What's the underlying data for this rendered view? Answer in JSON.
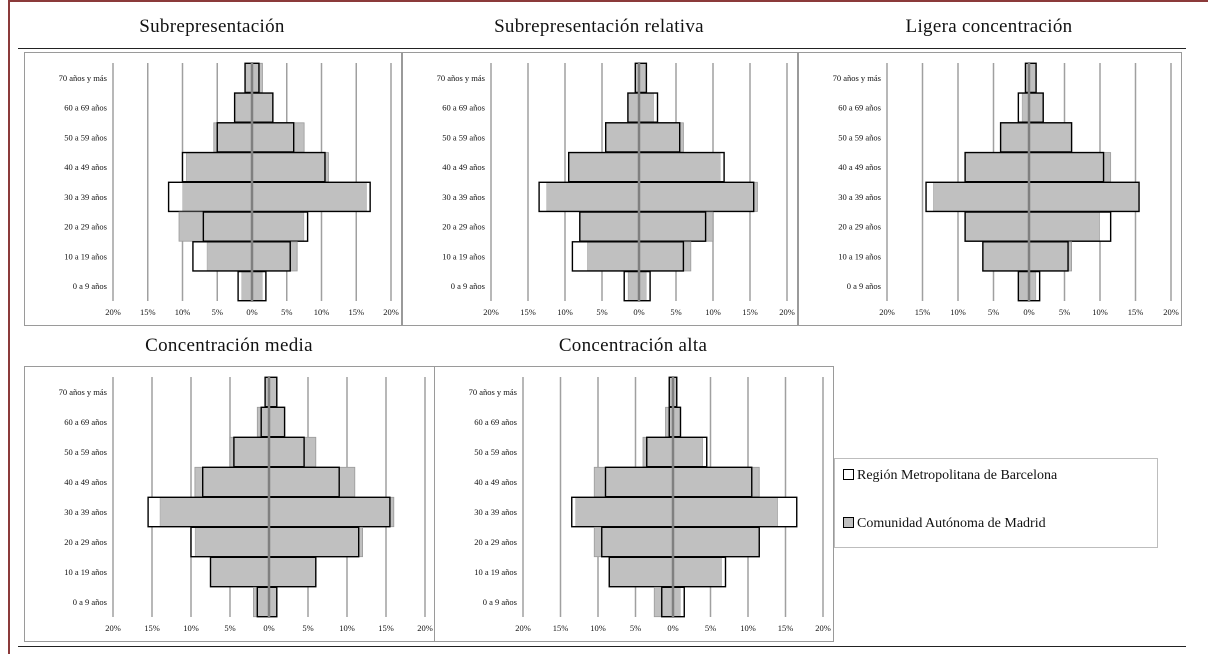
{
  "chart_data": [
    {
      "type": "bar",
      "title": "Subrepresentación",
      "categories": [
        "70 años y más",
        "60 a 69 años",
        "50 a 59 años",
        "40 a 49 años",
        "30 a 39 años",
        "20 a 29 años",
        "10 a 19 años",
        "0 a 9 años"
      ],
      "xticks": [
        "20%",
        "15%",
        "10%",
        "5%",
        "0%",
        "5%",
        "10%",
        "15%",
        "20%"
      ],
      "xlim": [
        -20,
        20
      ],
      "series": [
        {
          "name": "Región Metropolitana de Barcelona",
          "left": [
            1.0,
            2.5,
            5.0,
            10.0,
            12.0,
            7.0,
            8.5,
            2.0
          ],
          "right": [
            1.0,
            3.0,
            6.0,
            10.5,
            17.0,
            8.0,
            5.5,
            2.0
          ]
        },
        {
          "name": "Comunidad Autónoma de Madrid",
          "left": [
            1.0,
            2.5,
            5.5,
            9.5,
            10.0,
            10.5,
            6.5,
            1.5
          ],
          "right": [
            1.5,
            3.0,
            7.5,
            11.0,
            16.5,
            7.5,
            6.5,
            1.5
          ]
        }
      ]
    },
    {
      "type": "bar",
      "title": "Subrepresentación relativa",
      "categories": [
        "70 años y más",
        "60 a 69 años",
        "50 a 59 años",
        "40 a 49 años",
        "30 a 39 años",
        "20 a 29 años",
        "10 a 19 años",
        "0 a 9 años"
      ],
      "xticks": [
        "20%",
        "15%",
        "10%",
        "5%",
        "0%",
        "5%",
        "10%",
        "15%",
        "20%"
      ],
      "xlim": [
        -20,
        20
      ],
      "series": [
        {
          "name": "Región Metropolitana de Barcelona",
          "left": [
            0.5,
            1.5,
            4.5,
            9.5,
            13.5,
            8.0,
            9.0,
            2.0
          ],
          "right": [
            1.0,
            2.5,
            5.5,
            11.5,
            15.5,
            9.0,
            6.0,
            1.5
          ]
        },
        {
          "name": "Comunidad Autónoma de Madrid",
          "left": [
            0.5,
            1.5,
            4.5,
            9.5,
            12.5,
            8.0,
            7.0,
            1.5
          ],
          "right": [
            1.0,
            2.0,
            6.0,
            11.0,
            16.0,
            10.0,
            7.0,
            1.0
          ]
        }
      ]
    },
    {
      "type": "bar",
      "title": "Ligera concentración",
      "categories": [
        "70 años y más",
        "60 a 69 años",
        "50 a 59 años",
        "40 a 49 años",
        "30 a 39 años",
        "20 a 29 años",
        "10 a 19 años",
        "0 a 9 años"
      ],
      "xticks": [
        "20%",
        "15%",
        "10%",
        "5%",
        "0%",
        "5%",
        "10%",
        "15%",
        "20%"
      ],
      "xlim": [
        -20,
        20
      ],
      "series": [
        {
          "name": "Región Metropolitana de Barcelona",
          "left": [
            0.5,
            1.5,
            4.0,
            9.0,
            14.5,
            9.0,
            6.5,
            1.5
          ],
          "right": [
            1.0,
            2.0,
            6.0,
            10.5,
            15.5,
            11.5,
            5.5,
            1.5
          ]
        },
        {
          "name": "Comunidad Autónoma de Madrid",
          "left": [
            0.5,
            1.0,
            4.0,
            9.0,
            13.5,
            9.0,
            6.5,
            1.5
          ],
          "right": [
            1.0,
            2.0,
            6.0,
            11.5,
            15.5,
            10.0,
            6.0,
            1.0
          ]
        }
      ]
    },
    {
      "type": "bar",
      "title": "Concentración media",
      "categories": [
        "70 años y más",
        "60 a 69 años",
        "50 a 59 años",
        "40 a 49 años",
        "30 a 39 años",
        "20 a 29 años",
        "10 a 19 años",
        "0 a 9 años"
      ],
      "xticks": [
        "20%",
        "15%",
        "10%",
        "5%",
        "0%",
        "5%",
        "10%",
        "15%",
        "20%"
      ],
      "xlim": [
        -20,
        20
      ],
      "series": [
        {
          "name": "Región Metropolitana de Barcelona",
          "left": [
            0.5,
            1.0,
            4.5,
            8.5,
            15.5,
            10.0,
            7.5,
            1.5
          ],
          "right": [
            1.0,
            2.0,
            4.5,
            9.0,
            15.5,
            11.5,
            6.0,
            1.0
          ]
        },
        {
          "name": "Comunidad Autónoma de Madrid",
          "left": [
            0.5,
            1.5,
            5.0,
            9.5,
            14.0,
            9.5,
            7.5,
            2.0
          ],
          "right": [
            1.0,
            2.0,
            6.0,
            11.0,
            16.0,
            12.0,
            6.0,
            1.0
          ]
        }
      ]
    },
    {
      "type": "bar",
      "title": "Concentración alta",
      "categories": [
        "70 años y más",
        "60 a 69 años",
        "50 a 59 años",
        "40 a 49 años",
        "30 a 39 años",
        "20 a 29 años",
        "10 a 19 años",
        "0 a 9 años"
      ],
      "xticks": [
        "20%",
        "15%",
        "10%",
        "5%",
        "0%",
        "5%",
        "10%",
        "15%",
        "20%"
      ],
      "xlim": [
        -20,
        20
      ],
      "series": [
        {
          "name": "Región Metropolitana de Barcelona",
          "left": [
            0.5,
            0.5,
            3.5,
            9.0,
            13.5,
            9.5,
            8.5,
            1.5
          ],
          "right": [
            0.5,
            1.0,
            4.5,
            10.5,
            16.5,
            11.5,
            7.0,
            1.5
          ]
        },
        {
          "name": "Comunidad Autónoma de Madrid",
          "left": [
            0.5,
            1.0,
            4.0,
            10.5,
            13.0,
            10.5,
            8.5,
            2.5
          ],
          "right": [
            0.5,
            1.0,
            4.0,
            11.5,
            14.0,
            11.5,
            6.5,
            1.0
          ]
        }
      ]
    }
  ],
  "legend": {
    "items": [
      {
        "label": "Región Metropolitana de Barcelona",
        "color": "#ffffff"
      },
      {
        "label": "Comunidad Autónoma de Madrid",
        "color": "#c0c0c0"
      }
    ]
  },
  "colors": {
    "barcelona_fill": "#ffffff",
    "madrid_fill": "#c0c0c0",
    "outline": "#000000",
    "center_line": "#808080",
    "gridline": "#a0a0a0"
  }
}
